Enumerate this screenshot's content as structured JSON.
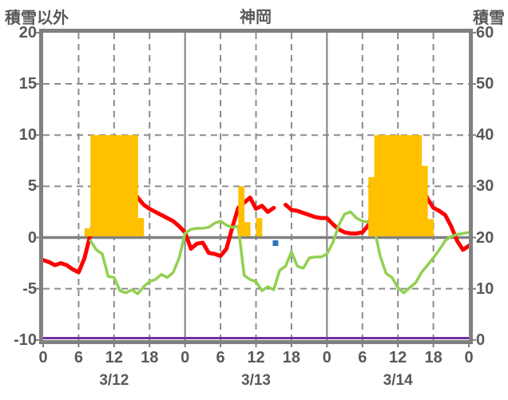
{
  "titles": {
    "left_axis_title": "積雪以外",
    "station_title": "神岡",
    "right_axis_title": "積雪"
  },
  "chart_data": {
    "type": "line+bar",
    "title": "神岡",
    "left_axis": {
      "label": "積雪以外",
      "min": -10,
      "max": 20,
      "ticks": [
        20,
        15,
        10,
        5,
        0,
        -5,
        -10
      ]
    },
    "right_axis": {
      "label": "積雪",
      "min": 0,
      "max": 60,
      "ticks": [
        60,
        50,
        40,
        30,
        20,
        10,
        0
      ]
    },
    "x_axis": {
      "total_hours": 72,
      "tick_hours": [
        0,
        6,
        12,
        18,
        24,
        30,
        36,
        42,
        48,
        54,
        60,
        66,
        72
      ],
      "tick_labels": [
        "0",
        "6",
        "12",
        "18",
        "0",
        "6",
        "12",
        "18",
        "0",
        "6",
        "12",
        "18",
        "0"
      ],
      "date_labels": [
        {
          "label": "3/12",
          "center_hour": 12
        },
        {
          "label": "3/13",
          "center_hour": 36
        },
        {
          "label": "3/14",
          "center_hour": 60
        }
      ]
    },
    "grid": {
      "horizontal_dashed_values": [
        15,
        10,
        5,
        -5
      ],
      "vertical_dashed_hours": [
        6,
        12,
        18,
        30,
        36,
        42,
        54,
        60,
        66
      ],
      "vertical_solid_hours": [
        24,
        48
      ],
      "zero_line_value": 0
    },
    "series": [
      {
        "name": "red-temperature-line",
        "type": "line",
        "axis": "left",
        "color": "#ff0000",
        "width": 5,
        "values_by_hour": [
          -2.2,
          -2.4,
          -2.7,
          -2.5,
          -2.7,
          -3.1,
          -3.4,
          -2.0,
          0.3,
          2.5,
          4.0,
          5.3,
          5.7,
          6.0,
          5.5,
          4.7,
          3.9,
          3.2,
          2.8,
          2.5,
          2.2,
          1.9,
          1.6,
          1.1,
          0.5,
          -1.1,
          -0.6,
          -0.5,
          -1.5,
          -1.6,
          -1.8,
          -1.1,
          1.0,
          2.9,
          3.4,
          3.9,
          2.8,
          3.1,
          2.5,
          2.9,
          null,
          3.2,
          2.7,
          2.6,
          2.4,
          2.2,
          2.0,
          1.9,
          1.9,
          1.3,
          0.8,
          0.5,
          0.4,
          0.4,
          0.5,
          1.2,
          2.9,
          4.8,
          6.5,
          7.1,
          7.3,
          7.1,
          6.5,
          5.7,
          5.1,
          3.8,
          2.9,
          2.6,
          2.2,
          1.1,
          -0.3,
          -1.2,
          -0.8
        ]
      },
      {
        "name": "green-line",
        "type": "line",
        "axis": "left",
        "color": "#92d050",
        "width": 3.5,
        "values_by_hour": [
          null,
          null,
          null,
          null,
          null,
          null,
          null,
          null,
          -0.3,
          -1.2,
          -1.6,
          -3.8,
          -3.9,
          -5.2,
          -5.4,
          -5.1,
          -5.5,
          -4.8,
          -4.3,
          -4.1,
          -3.6,
          -3.9,
          -3.4,
          -2.0,
          0.4,
          0.8,
          0.9,
          0.9,
          1.0,
          1.4,
          1.6,
          1.2,
          1.0,
          1.1,
          -3.7,
          -4.1,
          -4.3,
          -5.2,
          -4.8,
          -5.1,
          -3.2,
          -2.8,
          -1.4,
          -2.8,
          -3.0,
          -2.0,
          -1.9,
          -1.9,
          -1.6,
          -0.5,
          1.2,
          2.3,
          2.5,
          1.9,
          1.6,
          1.5,
          0.9,
          -1.8,
          -3.5,
          -3.9,
          -4.9,
          -5.4,
          -4.9,
          -4.4,
          -3.4,
          -2.7,
          -2.0,
          -1.2,
          -0.3,
          0.1,
          0.3,
          0.4,
          0.5
        ]
      },
      {
        "name": "orange-bars",
        "type": "bar",
        "axis": "left",
        "color": "#ffc000",
        "bars": [
          [
            7,
            0.9
          ],
          [
            8,
            10
          ],
          [
            9,
            10
          ],
          [
            10,
            10
          ],
          [
            11,
            10
          ],
          [
            12,
            10
          ],
          [
            13,
            10
          ],
          [
            14,
            10
          ],
          [
            15,
            10
          ],
          [
            16,
            1.9
          ],
          [
            33,
            5.0
          ],
          [
            34,
            1.5
          ],
          [
            36,
            1.9
          ],
          [
            55,
            5.9
          ],
          [
            56,
            10
          ],
          [
            57,
            10
          ],
          [
            58,
            10
          ],
          [
            59,
            10
          ],
          [
            60,
            10
          ],
          [
            61,
            10
          ],
          [
            62,
            10
          ],
          [
            63,
            10
          ],
          [
            64,
            7.0
          ],
          [
            65,
            1.8
          ]
        ]
      },
      {
        "name": "purple-baseline",
        "type": "line",
        "axis": "left",
        "color": "#7030a0",
        "width": 3,
        "constant_value": -9.82,
        "from_hour": 0,
        "to_hour": 72
      },
      {
        "name": "blue-square-marker",
        "type": "point",
        "axis": "left",
        "color": "#2e75b6",
        "size": 7,
        "x_hour": 39.3,
        "value": -0.55
      }
    ],
    "frame": {
      "border_color": "#808080",
      "grid_color": "#8c8c8c",
      "zero_line_color": "#808080",
      "text_color": "#595959"
    }
  }
}
